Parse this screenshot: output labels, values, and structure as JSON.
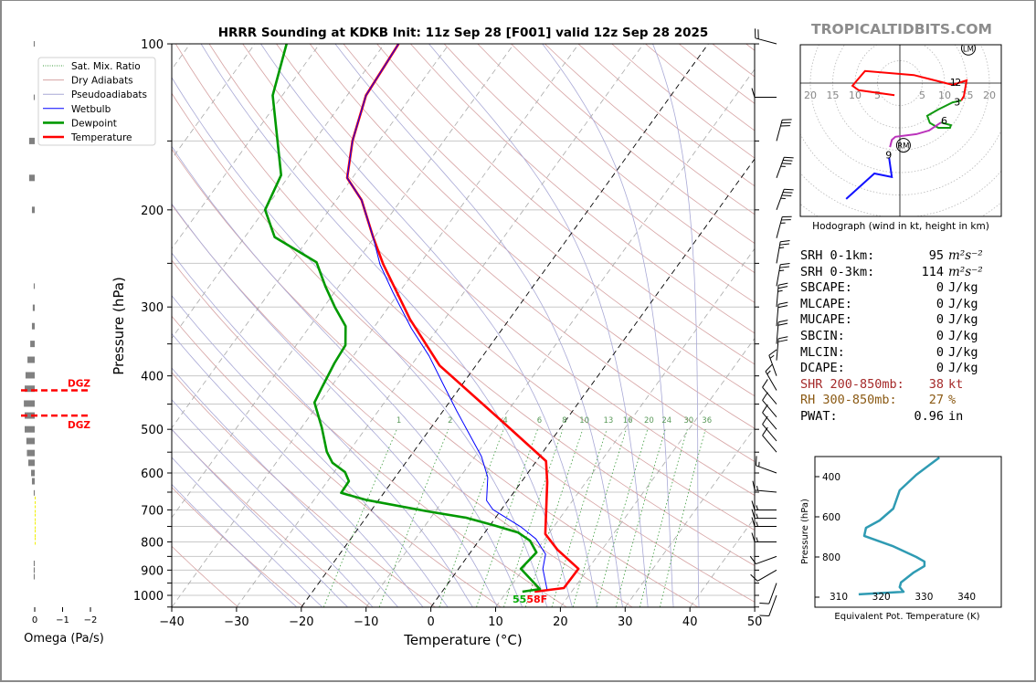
{
  "header": {
    "title": "HRRR Sounding at KDKB Init: 11z Sep 28 [F001] valid 12z Sep 28 2025",
    "watermark": "TROPICALTIDBITS.COM"
  },
  "chart_data": [
    {
      "type": "line",
      "name": "skew-t",
      "title": "HRRR Sounding at KDKB Init: 11z Sep 28 [F001] valid 12z Sep 28 2025",
      "xlabel": "Temperature (°C)",
      "ylabel": "Pressure (hPa)",
      "xlim": [
        -40,
        50
      ],
      "ylim": [
        1050,
        100
      ],
      "xticks": [
        "−40",
        "−30",
        "−20",
        "−10",
        "0",
        "10",
        "20",
        "30",
        "40",
        "50"
      ],
      "xtick_values": [
        -40,
        -30,
        -20,
        -10,
        0,
        10,
        20,
        30,
        40,
        50
      ],
      "yticks": [
        "100",
        "200",
        "300",
        "400",
        "500",
        "600",
        "700",
        "800",
        "900",
        "1000"
      ],
      "ytick_values": [
        100,
        200,
        300,
        400,
        500,
        600,
        700,
        800,
        900,
        1000
      ],
      "grid": true,
      "legend": {
        "placement": "top-left",
        "entries": [
          {
            "label": "Sat. Mix. Ratio",
            "color": "#3a9a3a",
            "style": "dotted"
          },
          {
            "label": "Dry Adiabats",
            "color": "#d6a3a3",
            "style": "solid"
          },
          {
            "label": "Pseudoadiabats",
            "color": "#a9a9d6",
            "style": "solid"
          },
          {
            "label": "Wetbulb",
            "color": "#0000ff",
            "style": "solid"
          },
          {
            "label": "Dewpoint",
            "color": "#009900",
            "style": "thick"
          },
          {
            "label": "Temperature",
            "color": "#ff0000",
            "style": "thick"
          }
        ]
      },
      "series": [
        {
          "name": "Temperature",
          "color": "#ff0000",
          "points": [
            [
              985,
              14.3
            ],
            [
              970,
              18.4
            ],
            [
              895,
              18.5
            ],
            [
              826,
              13.1
            ],
            [
              774,
              9.5
            ],
            [
              623,
              4.0
            ],
            [
              571,
              1.5
            ],
            [
              481,
              -10.1
            ],
            [
              383,
              -25.6
            ],
            [
              316,
              -35.3
            ],
            [
              251,
              -45.6
            ],
            [
              224,
              -50.2
            ],
            [
              192,
              -56.1
            ],
            [
              175,
              -60.8
            ],
            [
              150,
              -64.1
            ],
            [
              124,
              -67.1
            ],
            [
              100,
              -67.8
            ]
          ]
        },
        {
          "name": "Dewpoint",
          "color": "#009900",
          "points": [
            [
              985,
              12.4
            ],
            [
              974,
              14.8
            ],
            [
              895,
              9.6
            ],
            [
              836,
              10.2
            ],
            [
              796,
              7.9
            ],
            [
              769,
              5.1
            ],
            [
              746,
              0.5
            ],
            [
              723,
              -4.6
            ],
            [
              704,
              -11.3
            ],
            [
              671,
              -22.1
            ],
            [
              652,
              -26.6
            ],
            [
              621,
              -26.7
            ],
            [
              598,
              -28.3
            ],
            [
              575,
              -31.3
            ],
            [
              549,
              -33.4
            ],
            [
              496,
              -36.9
            ],
            [
              447,
              -40.8
            ],
            [
              421,
              -41.3
            ],
            [
              379,
              -42.1
            ],
            [
              352,
              -42.4
            ],
            [
              325,
              -44.5
            ],
            [
              300,
              -48.3
            ],
            [
              275,
              -52.1
            ],
            [
              249,
              -56.1
            ],
            [
              224,
              -65.4
            ],
            [
              200,
              -69.9
            ],
            [
              173,
              -71.3
            ],
            [
              124,
              -81.5
            ],
            [
              100,
              -85.1
            ]
          ]
        },
        {
          "name": "Wetbulb",
          "color": "#0000ff",
          "points": [
            [
              974,
              15.9
            ],
            [
              895,
              13.0
            ],
            [
              842,
              11.8
            ],
            [
              790,
              8.6
            ],
            [
              751,
              4.9
            ],
            [
              699,
              -1.3
            ],
            [
              673,
              -3.3
            ],
            [
              611,
              -5.7
            ],
            [
              560,
              -9.0
            ],
            [
              463,
              -17.9
            ],
            [
              413,
              -23.1
            ],
            [
              368,
              -28.3
            ],
            [
              328,
              -34.1
            ],
            [
              282,
              -41.0
            ],
            [
              251,
              -46.1
            ],
            [
              224,
              -50.2
            ],
            [
              192,
              -56.1
            ],
            [
              175,
              -60.8
            ],
            [
              150,
              -64.1
            ],
            [
              124,
              -67.1
            ],
            [
              100,
              -67.8
            ]
          ]
        }
      ],
      "mixing_ratio_labels": [
        "1",
        "2",
        "4",
        "6",
        "8",
        "10",
        "13",
        "16",
        "20",
        "24",
        "30",
        "36"
      ],
      "mixing_ratio_values": [
        1,
        2,
        4,
        6,
        8,
        10,
        13,
        16,
        20,
        24,
        30,
        36
      ],
      "surface_label": {
        "dewpoint_f": "55",
        "temperature_f": "58F",
        "dewpoint_color": "#00aa00",
        "temperature_color": "#ff0000"
      },
      "wind_barbs": [
        [
          100,
          285,
          20
        ],
        [
          125,
          270,
          10
        ],
        [
          150,
          15,
          30
        ],
        [
          175,
          20,
          35
        ],
        [
          200,
          20,
          35
        ],
        [
          225,
          15,
          25
        ],
        [
          250,
          10,
          25
        ],
        [
          275,
          10,
          25
        ],
        [
          300,
          5,
          25
        ],
        [
          325,
          5,
          20
        ],
        [
          350,
          5,
          20
        ],
        [
          375,
          5,
          20
        ],
        [
          400,
          340,
          15
        ],
        [
          425,
          330,
          15
        ],
        [
          450,
          320,
          10
        ],
        [
          475,
          320,
          10
        ],
        [
          500,
          320,
          10
        ],
        [
          525,
          320,
          10
        ],
        [
          550,
          320,
          10
        ],
        [
          600,
          290,
          15
        ],
        [
          650,
          275,
          15
        ],
        [
          700,
          270,
          15
        ],
        [
          725,
          270,
          15
        ],
        [
          750,
          270,
          15
        ],
        [
          800,
          270,
          15
        ],
        [
          850,
          250,
          10
        ],
        [
          900,
          240,
          10
        ],
        [
          950,
          200,
          10
        ],
        [
          1000,
          200,
          10
        ]
      ]
    },
    {
      "type": "bar",
      "name": "omega",
      "xlabel": "Omega (Pa/s)",
      "xticks": [
        "0",
        "−1",
        "−2"
      ],
      "xtick_values": [
        0,
        -1,
        -2
      ],
      "values": [
        [
          100,
          0.02
        ],
        [
          125,
          0.03
        ],
        [
          150,
          0.2
        ],
        [
          175,
          0.2
        ],
        [
          200,
          0.1
        ],
        [
          275,
          0.03
        ],
        [
          301,
          0.07
        ],
        [
          325,
          0.1
        ],
        [
          350,
          0.16
        ],
        [
          374,
          0.26
        ],
        [
          399,
          0.33
        ],
        [
          422,
          0.36
        ],
        [
          449,
          0.39
        ],
        [
          472,
          0.36
        ],
        [
          500,
          0.36
        ],
        [
          525,
          0.3
        ],
        [
          552,
          0.28
        ],
        [
          575,
          0.23
        ],
        [
          600,
          0.13
        ],
        [
          621,
          0.1
        ],
        [
          652,
          0.02
        ],
        [
          675,
          -0.02
        ],
        [
          700,
          -0.02
        ],
        [
          725,
          -0.02
        ],
        [
          750,
          -0.02
        ],
        [
          775,
          -0.02
        ],
        [
          800,
          -0.02
        ],
        [
          875,
          0.01
        ],
        [
          900,
          0.01
        ],
        [
          925,
          0.01
        ]
      ],
      "positive_color": "#808080",
      "negative_color": "#f0f000",
      "dgz": {
        "labels": [
          "DGZ",
          "DGZ"
        ],
        "pressures": [
          425,
          472
        ],
        "color": "#ff0000"
      }
    },
    {
      "type": "line",
      "name": "hodograph",
      "caption": "Hodograph (wind in kt, height in km)",
      "ring_labels_left": [
        "20",
        "15",
        "10",
        "5"
      ],
      "ring_labels_right": [
        "5",
        "10",
        "15",
        "20"
      ],
      "segments": [
        {
          "name": "0-3 km",
          "color": "#ff0000",
          "points": [
            [
              -1.2,
              -2.7
            ],
            [
              -9.2,
              -1.6
            ],
            [
              -10.6,
              -0.6
            ],
            [
              -7.8,
              2.7
            ],
            [
              3.1,
              1.8
            ],
            [
              11.8,
              -0.4
            ],
            [
              14.3,
              0.4
            ],
            [
              14.9,
              0.6
            ],
            [
              14.3,
              -2.9
            ],
            [
              13.7,
              -3.9
            ]
          ]
        },
        {
          "name": "3-6 km",
          "color": "#119911",
          "points": [
            [
              13.7,
              -3.9
            ],
            [
              11.8,
              -4.3
            ],
            [
              8.6,
              -5.9
            ],
            [
              6.1,
              -7.3
            ],
            [
              6.7,
              -8.9
            ],
            [
              8.6,
              -10
            ],
            [
              11.2,
              -10
            ],
            [
              11.4,
              -9.4
            ],
            [
              9.2,
              -8.8
            ]
          ]
        },
        {
          "name": "6-9 km",
          "color": "#bb33bb",
          "points": [
            [
              9.2,
              -8.8
            ],
            [
              6.5,
              -10.6
            ],
            [
              3.7,
              -11.4
            ],
            [
              -1,
              -12
            ],
            [
              -1.8,
              -12.7
            ],
            [
              -2.2,
              -14.3
            ]
          ]
        },
        {
          "name": "9-12 km",
          "color": "#1111ff",
          "points": [
            [
              -2.4,
              -16.7
            ],
            [
              -1.8,
              -21
            ],
            [
              -5.7,
              -20.2
            ],
            [
              -12,
              -25.9
            ]
          ]
        }
      ],
      "height_labels": [
        {
          "text": "1",
          "u": 11.9,
          "v": 0.2
        },
        {
          "text": "2",
          "u": 13.0,
          "v": 0.2
        },
        {
          "text": "3",
          "u": 12.8,
          "v": -4.2
        },
        {
          "text": "6",
          "u": 9.9,
          "v": -8.4
        },
        {
          "text": "9",
          "u": -2.5,
          "v": -16.0
        }
      ],
      "markers": [
        {
          "text": "RM",
          "u": 0.8,
          "v": -13.9
        },
        {
          "text": "LM",
          "u": 15.3,
          "v": 7.8
        }
      ]
    },
    {
      "type": "line",
      "name": "theta-e",
      "xlabel": "Equivalent Pot. Temperature (K)",
      "ylabel": "Pressure (hPa)",
      "xticks": [
        "310",
        "320",
        "330",
        "340"
      ],
      "xtick_values": [
        310,
        320,
        330,
        340
      ],
      "yticks": [
        "400",
        "600",
        "800"
      ],
      "ytick_values": [
        400,
        600,
        800,
        1000
      ],
      "color": "#2f9bb3",
      "points": [
        [
          305,
          333.6
        ],
        [
          391,
          328.2
        ],
        [
          468,
          324.3
        ],
        [
          559,
          322.8
        ],
        [
          618,
          319.6
        ],
        [
          655,
          316.4
        ],
        [
          695,
          316.0
        ],
        [
          745,
          322.6
        ],
        [
          800,
          328.2
        ],
        [
          823,
          330.1
        ],
        [
          845,
          330.1
        ],
        [
          877,
          327.6
        ],
        [
          927,
          324.6
        ],
        [
          950,
          324.3
        ],
        [
          968,
          325.0
        ],
        [
          973,
          325.2
        ],
        [
          986,
          314.7
        ]
      ]
    }
  ],
  "parameters": [
    {
      "label": "SRH 0-1km:",
      "value": "95",
      "unit": "m²s⁻²",
      "color": "#000000"
    },
    {
      "label": "SRH 0-3km:",
      "value": "114",
      "unit": "m²s⁻²",
      "color": "#000000"
    },
    {
      "label": "SBCAPE:",
      "value": "0",
      "unit": "J/kg",
      "color": "#000000"
    },
    {
      "label": "MLCAPE:",
      "value": "0",
      "unit": "J/kg",
      "color": "#000000"
    },
    {
      "label": "MUCAPE:",
      "value": "0",
      "unit": "J/kg",
      "color": "#000000"
    },
    {
      "label": "SBCIN:",
      "value": "0",
      "unit": "J/kg",
      "color": "#000000"
    },
    {
      "label": "MLCIN:",
      "value": "0",
      "unit": "J/kg",
      "color": "#000000"
    },
    {
      "label": "DCAPE:",
      "value": "0",
      "unit": "J/kg",
      "color": "#000000"
    },
    {
      "label": "SHR 200-850mb:",
      "value": "38",
      "unit": "kt",
      "color": "#a52a2a"
    },
    {
      "label": "RH 300-850mb:",
      "value": "27",
      "unit": "%",
      "color": "#8b5a14"
    },
    {
      "label": "PWAT:",
      "value": "0.96",
      "unit": "in",
      "color": "#000000"
    }
  ]
}
